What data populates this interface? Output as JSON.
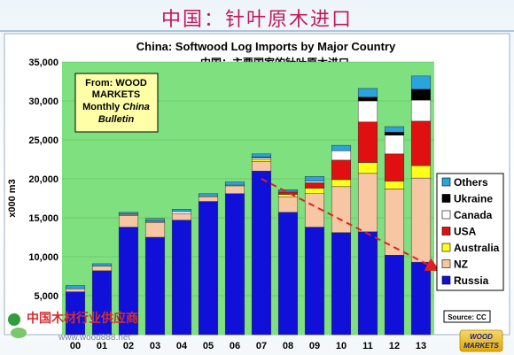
{
  "page": {
    "title": "中国：针叶原木进口"
  },
  "watermark": {
    "line1": "中国木材行业供应商",
    "line2": "www.wood888.net"
  },
  "logo": {
    "line1": "WOOD",
    "line2": "MARKETS"
  },
  "colors": {
    "Russia": "#1010d8",
    "NZ": "#f6c7a2",
    "Australia": "#ffff1a",
    "USA": "#e01010",
    "Canada": "#ffffff",
    "Ukraine": "#000000",
    "Others": "#2aa4dd",
    "plot_bg": "#7fe07f",
    "trend": "#e02020"
  },
  "chart_data": {
    "type": "bar",
    "stacked": true,
    "title": "China: Softwood Log Imports by Major Country",
    "subtitle": "中国：主要国家的针叶原木进口",
    "ylabel": "x000 m3",
    "xlabel": "",
    "ylim": [
      0,
      35000
    ],
    "yticks": [
      5000,
      10000,
      15000,
      20000,
      25000,
      30000,
      35000
    ],
    "ytick_labels": [
      "5,000",
      "10,000",
      "15,000",
      "20,000",
      "25,000",
      "30,000",
      "35,000"
    ],
    "categories": [
      "00",
      "01",
      "02",
      "03",
      "04",
      "05",
      "06",
      "07",
      "08",
      "09",
      "10",
      "11",
      "12",
      "13"
    ],
    "series": [
      {
        "name": "Russia",
        "values": [
          5500,
          8200,
          13800,
          12500,
          14700,
          17100,
          18100,
          21000,
          15700,
          13800,
          13100,
          13200,
          10200,
          9300
        ]
      },
      {
        "name": "NZ",
        "values": [
          400,
          600,
          1500,
          1900,
          800,
          600,
          1000,
          1200,
          2000,
          4300,
          5900,
          7500,
          8500,
          10800
        ]
      },
      {
        "name": "Australia",
        "values": [
          0,
          0,
          100,
          100,
          0,
          0,
          0,
          300,
          300,
          700,
          900,
          1400,
          1000,
          1600
        ]
      },
      {
        "name": "USA",
        "values": [
          0,
          0,
          0,
          0,
          0,
          0,
          0,
          0,
          300,
          700,
          2500,
          5200,
          3500,
          5700
        ]
      },
      {
        "name": "Canada",
        "values": [
          0,
          0,
          100,
          100,
          300,
          100,
          100,
          200,
          100,
          200,
          1200,
          2700,
          2400,
          2700
        ]
      },
      {
        "name": "Ukraine",
        "values": [
          0,
          0,
          0,
          0,
          0,
          0,
          0,
          100,
          0,
          0,
          0,
          500,
          400,
          1400
        ]
      },
      {
        "name": "Others",
        "values": [
          400,
          300,
          200,
          300,
          300,
          300,
          400,
          400,
          200,
          600,
          700,
          1100,
          700,
          1700
        ]
      }
    ],
    "legend": {
      "position": "right",
      "order": [
        "Others",
        "Ukraine",
        "Canada",
        "USA",
        "Australia",
        "NZ",
        "Russia"
      ]
    },
    "annotation_box": {
      "line1": "From: WOOD",
      "line2": "MARKETS",
      "line3": "Monthly",
      "line3b": "China",
      "line4": "Bulletin"
    },
    "source_label": "Source: CC",
    "trend_line": {
      "from": [
        "07",
        20000
      ],
      "to": [
        "13",
        9300
      ],
      "style": "dashed-arrow"
    }
  }
}
